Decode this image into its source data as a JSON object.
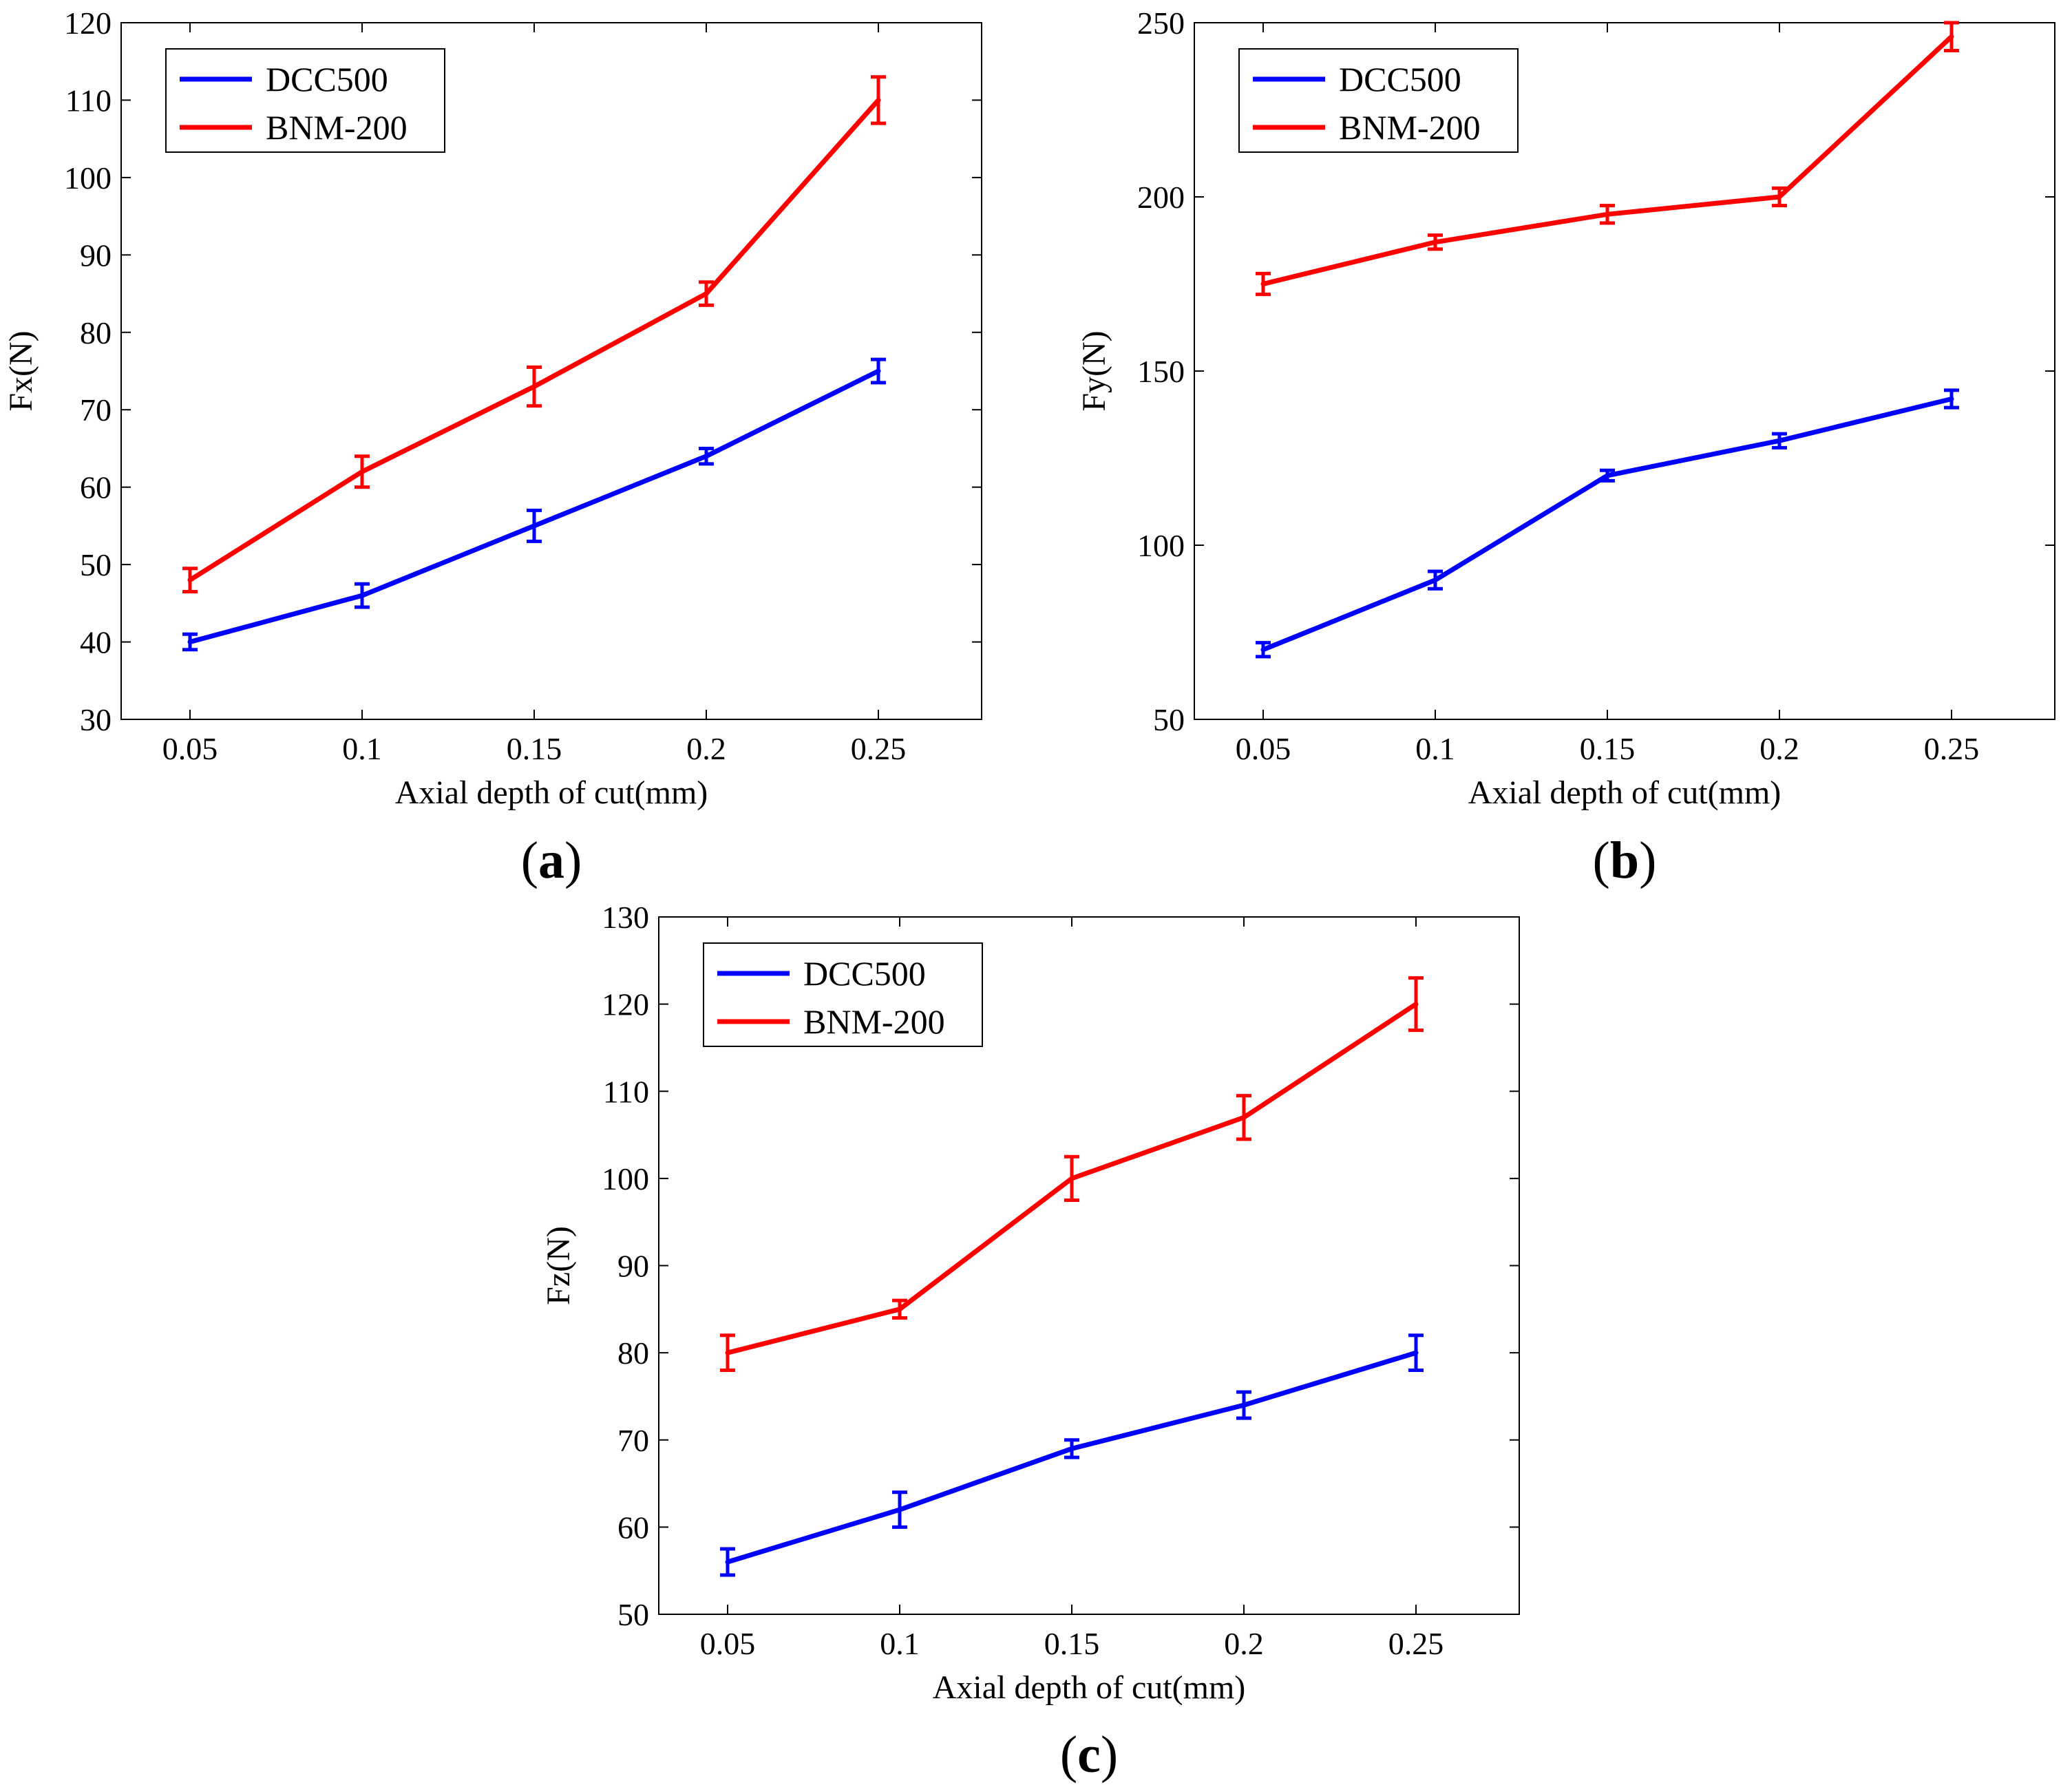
{
  "chart_data": [
    {
      "type": "line",
      "panel_label": "a",
      "title": "",
      "xlabel": "Axial depth of cut(mm)",
      "ylabel": "Fx(N)",
      "x": [
        0.05,
        0.1,
        0.15,
        0.2,
        0.25
      ],
      "x_tick_labels": [
        "0.05",
        "0.1",
        "0.15",
        "0.2",
        "0.25"
      ],
      "xlim": [
        0.03,
        0.28
      ],
      "ylim": [
        30,
        120
      ],
      "y_ticks": [
        30,
        40,
        50,
        60,
        70,
        80,
        90,
        100,
        110,
        120
      ],
      "grid": false,
      "legend_position": "top-left",
      "series": [
        {
          "name": "DCC500",
          "color": "#0000ff",
          "values": [
            40,
            46,
            55,
            64,
            75
          ],
          "error": [
            1,
            1.5,
            2,
            1,
            1.5
          ]
        },
        {
          "name": "BNM-200",
          "color": "#ff0000",
          "values": [
            48,
            62,
            73,
            85,
            110
          ],
          "error": [
            1.5,
            2,
            2.5,
            1.5,
            3
          ]
        }
      ]
    },
    {
      "type": "line",
      "panel_label": "b",
      "title": "",
      "xlabel": "Axial depth of cut(mm)",
      "ylabel": "Fy(N)",
      "x": [
        0.05,
        0.1,
        0.15,
        0.2,
        0.25
      ],
      "x_tick_labels": [
        "0.05",
        "0.1",
        "0.15",
        "0.2",
        "0.25"
      ],
      "xlim": [
        0.03,
        0.28
      ],
      "ylim": [
        50,
        250
      ],
      "y_ticks": [
        50,
        100,
        150,
        200,
        250
      ],
      "grid": false,
      "legend_position": "top-left",
      "series": [
        {
          "name": "DCC500",
          "color": "#0000ff",
          "values": [
            70,
            90,
            120,
            130,
            142
          ],
          "error": [
            2,
            2.5,
            1.5,
            2,
            2.5
          ]
        },
        {
          "name": "BNM-200",
          "color": "#ff0000",
          "values": [
            175,
            187,
            195,
            200,
            246
          ],
          "error": [
            3,
            2,
            2.5,
            2.5,
            4
          ]
        }
      ]
    },
    {
      "type": "line",
      "panel_label": "c",
      "title": "",
      "xlabel": "Axial depth of cut(mm)",
      "ylabel": "Fz(N)",
      "x": [
        0.05,
        0.1,
        0.15,
        0.2,
        0.25
      ],
      "x_tick_labels": [
        "0.05",
        "0.1",
        "0.15",
        "0.2",
        "0.25"
      ],
      "xlim": [
        0.03,
        0.28
      ],
      "ylim": [
        50,
        130
      ],
      "y_ticks": [
        50,
        60,
        70,
        80,
        90,
        100,
        110,
        120,
        130
      ],
      "grid": false,
      "legend_position": "top-left",
      "series": [
        {
          "name": "DCC500",
          "color": "#0000ff",
          "values": [
            56,
            62,
            69,
            74,
            80
          ],
          "error": [
            1.5,
            2,
            1,
            1.5,
            2
          ]
        },
        {
          "name": "BNM-200",
          "color": "#ff0000",
          "values": [
            80,
            85,
            100,
            107,
            120
          ],
          "error": [
            2,
            1,
            2.5,
            2.5,
            3
          ]
        }
      ]
    }
  ]
}
